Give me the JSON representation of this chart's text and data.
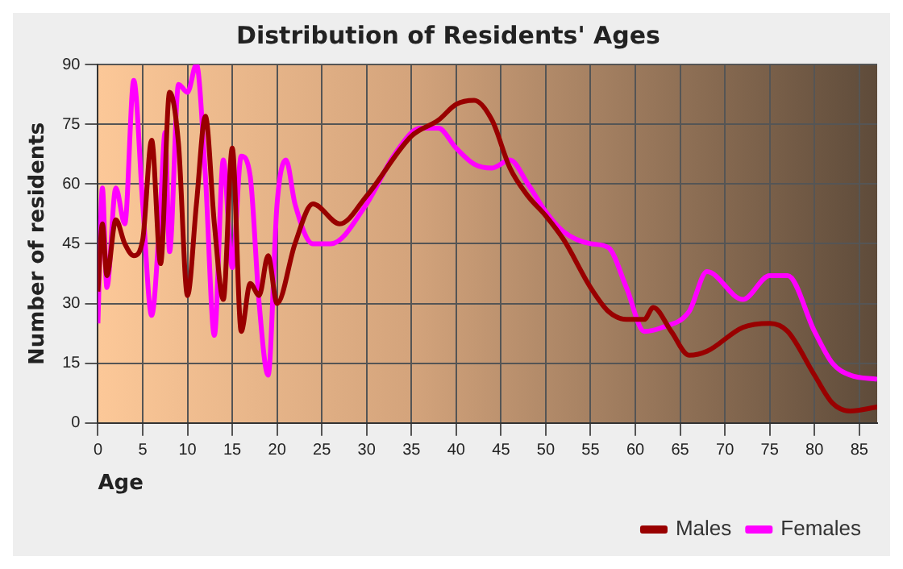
{
  "chart_data": {
    "type": "line",
    "title": "Distribution of Residents' Ages",
    "xlabel": "Age",
    "ylabel": "Number of residents",
    "xlim": [
      0,
      87
    ],
    "xticks": [
      0,
      5,
      10,
      15,
      20,
      25,
      30,
      35,
      40,
      45,
      50,
      55,
      60,
      65,
      70,
      75,
      80,
      85
    ],
    "ylim": [
      0,
      90
    ],
    "yticks": [
      0,
      15,
      30,
      45,
      60,
      75,
      90
    ],
    "grid": true,
    "legend": "bottom right",
    "marker": "none",
    "series": [
      {
        "name": "Males",
        "color": "#990000",
        "x": [
          0,
          0.5,
          1,
          2,
          3,
          4,
          5,
          6,
          7,
          8,
          9,
          10,
          11,
          12,
          13,
          14,
          15,
          16,
          17,
          18,
          19,
          20,
          22,
          24,
          27,
          30,
          35,
          38,
          40,
          42,
          44,
          46,
          48,
          50,
          52,
          55,
          57,
          59,
          61,
          62,
          64,
          66,
          68,
          72,
          75,
          77,
          80,
          82,
          84,
          87
        ],
        "values": [
          33,
          50,
          37,
          51,
          45,
          42,
          46,
          71,
          40,
          83,
          70,
          32,
          55,
          77,
          50,
          31,
          69,
          23,
          35,
          32,
          42,
          30,
          45,
          55,
          50,
          57,
          72,
          76,
          80,
          81,
          76,
          64,
          57,
          52,
          46,
          34,
          28,
          26,
          26,
          29,
          23,
          17,
          18,
          24,
          25,
          23,
          12,
          5,
          3,
          4
        ]
      },
      {
        "name": "Females",
        "color": "#ff00ff",
        "x": [
          0,
          0.5,
          1,
          2,
          3,
          4,
          5,
          6,
          7,
          7.5,
          8,
          9,
          10,
          11,
          12,
          13,
          14,
          15,
          16,
          17,
          18,
          19,
          20,
          21,
          22,
          24,
          26,
          30,
          33,
          36,
          38,
          40,
          42,
          44,
          46,
          48,
          50,
          52,
          55,
          57,
          59,
          61,
          63,
          66,
          68,
          72,
          75,
          77,
          80,
          82,
          84,
          87
        ],
        "values": [
          25,
          59,
          34,
          59,
          50,
          86,
          55,
          27,
          55,
          73,
          43,
          85,
          83,
          90,
          62,
          22,
          66,
          39,
          67,
          62,
          30,
          12,
          55,
          66,
          55,
          45,
          45,
          55,
          67,
          74,
          74,
          69,
          65,
          64,
          66,
          60,
          53,
          48,
          45,
          44,
          34,
          23,
          24,
          28,
          38,
          31,
          37,
          37,
          23,
          15,
          12,
          11
        ]
      }
    ]
  }
}
